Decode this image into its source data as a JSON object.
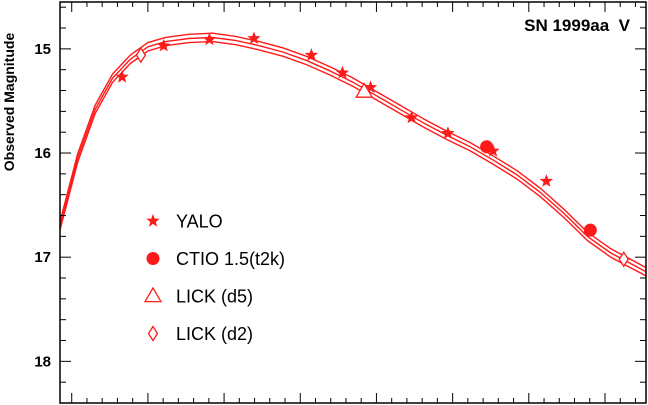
{
  "chart_data": {
    "type": "scatter",
    "title": "SN 1999aa  V",
    "xlabel": "",
    "ylabel": "Observed Magnitude",
    "y_inverted": true,
    "ylim": [
      18.4,
      14.55
    ],
    "xlim": [
      0,
      100
    ],
    "y_ticks": [
      "15",
      "16",
      "17",
      "18"
    ],
    "y_tick_values": [
      15,
      16,
      17,
      18
    ],
    "grid": false,
    "legend_position": "lower-left",
    "colors": {
      "series": "#ff1a1a",
      "axis": "#000000"
    },
    "series": [
      {
        "name": "YALO",
        "marker": "star",
        "x": [
          10.6,
          17.7,
          25.5,
          33.1,
          42.9,
          48.2,
          53.0,
          60.0,
          66.2,
          73.9,
          83.0
        ],
        "y": [
          15.27,
          14.97,
          14.91,
          14.9,
          15.06,
          15.23,
          15.37,
          15.66,
          15.81,
          15.98,
          16.27
        ]
      },
      {
        "name": "CTIO 1.5(t2k)",
        "marker": "filled-circle",
        "x": [
          72.8,
          90.5
        ],
        "y": [
          15.94,
          16.74
        ]
      },
      {
        "name": "LICK (d5)",
        "marker": "open-triangle",
        "x": [
          51.9
        ],
        "y": [
          15.41
        ]
      },
      {
        "name": "LICK (d2)",
        "marker": "open-diamond",
        "x": [
          13.8,
          96.2
        ],
        "y": [
          15.06,
          17.02
        ]
      }
    ],
    "fit_curves": {
      "x": [
        0,
        3,
        6,
        9,
        12,
        15,
        18,
        22,
        26,
        30,
        34,
        38,
        42,
        46,
        50,
        54,
        58,
        62,
        66,
        70,
        74,
        78,
        82,
        86,
        90,
        94,
        98,
        100
      ],
      "y": [
        16.7,
        16.05,
        15.58,
        15.28,
        15.1,
        14.98,
        14.93,
        14.9,
        14.89,
        14.92,
        14.97,
        15.03,
        15.11,
        15.21,
        15.32,
        15.45,
        15.58,
        15.71,
        15.83,
        15.94,
        16.07,
        16.21,
        16.38,
        16.58,
        16.8,
        16.96,
        17.08,
        17.14
      ],
      "offsets": [
        -0.04,
        0,
        0.04
      ]
    }
  }
}
